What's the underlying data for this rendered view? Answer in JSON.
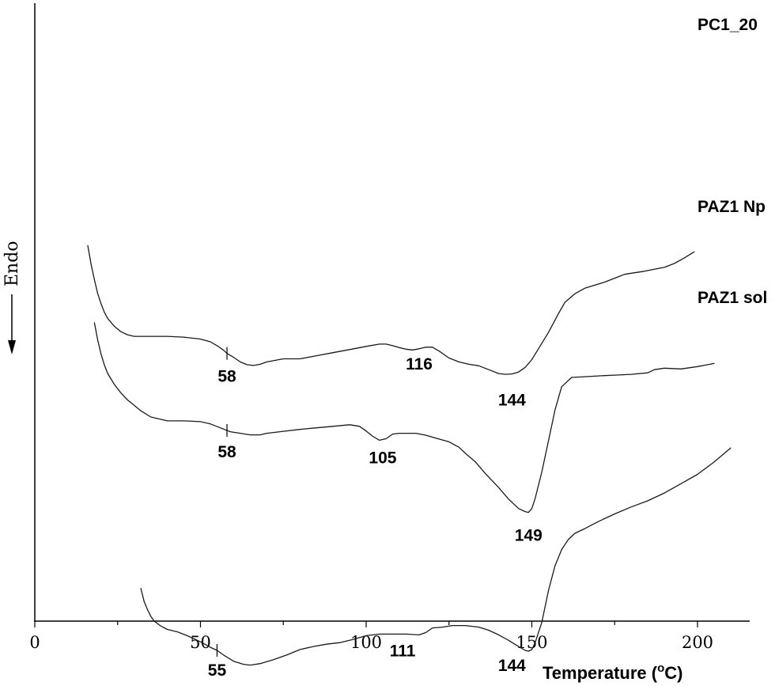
{
  "chart_data": {
    "type": "line",
    "title": "",
    "xlabel": "Temperature",
    "xlabel_unit_open": " (",
    "xlabel_unit_sup": "o",
    "xlabel_unit_close": "C)",
    "ylabel": "Endo",
    "xlim": [
      0,
      215
    ],
    "x_ticks": [
      0,
      50,
      100,
      150,
      200
    ],
    "x_tick_labels": [
      "0",
      "50",
      "100",
      "150",
      "200"
    ],
    "grid": false,
    "series": [
      {
        "name": "PC1_20",
        "x": [
          16,
          17,
          18,
          19,
          20,
          21,
          22,
          24,
          26,
          28,
          30,
          35,
          40,
          45,
          50,
          53,
          55,
          57,
          58,
          60,
          62,
          64,
          66,
          68,
          70,
          75,
          80,
          85,
          90,
          95,
          100,
          104,
          106,
          108,
          110,
          112,
          114,
          116,
          118,
          120,
          122,
          125,
          128,
          131,
          134,
          137,
          140,
          142,
          144,
          146,
          148,
          150,
          152,
          155,
          158,
          160,
          163,
          166,
          169,
          172,
          175,
          178,
          181,
          184,
          187,
          190,
          193,
          196,
          199
        ],
        "y": [
          7.44,
          6.96,
          6.56,
          6.2,
          5.94,
          5.72,
          5.56,
          5.36,
          5.22,
          5.14,
          5.1,
          5.1,
          5.1,
          5.08,
          5.03,
          4.96,
          4.86,
          4.74,
          4.66,
          4.56,
          4.44,
          4.37,
          4.35,
          4.38,
          4.44,
          4.52,
          4.52,
          4.6,
          4.68,
          4.76,
          4.84,
          4.9,
          4.9,
          4.86,
          4.81,
          4.77,
          4.75,
          4.78,
          4.82,
          4.82,
          4.72,
          4.54,
          4.44,
          4.38,
          4.34,
          4.24,
          4.14,
          4.12,
          4.13,
          4.18,
          4.3,
          4.5,
          4.78,
          5.2,
          5.68,
          5.98,
          6.2,
          6.34,
          6.42,
          6.5,
          6.6,
          6.7,
          6.74,
          6.78,
          6.83,
          6.88,
          6.98,
          7.12,
          7.28
        ]
      },
      {
        "name": "PAZ1 Np",
        "x": [
          18,
          19,
          20,
          21,
          22,
          24,
          26,
          28,
          30,
          32,
          35,
          40,
          45,
          50,
          53,
          56,
          59,
          62,
          65,
          68,
          70,
          75,
          80,
          85,
          90,
          95,
          98,
          100,
          102,
          104,
          106,
          108,
          110,
          115,
          118,
          120,
          125,
          128,
          130,
          133,
          136,
          140,
          143,
          146,
          148,
          149,
          150,
          151,
          153,
          155,
          157,
          159,
          162,
          166,
          170,
          175,
          180,
          185,
          187,
          190,
          195,
          200,
          205
        ],
        "y": [
          5.45,
          5.0,
          4.64,
          4.36,
          4.14,
          3.86,
          3.64,
          3.46,
          3.32,
          3.18,
          3.02,
          2.92,
          2.92,
          2.9,
          2.84,
          2.74,
          2.64,
          2.6,
          2.56,
          2.56,
          2.6,
          2.65,
          2.7,
          2.74,
          2.78,
          2.82,
          2.78,
          2.66,
          2.52,
          2.42,
          2.46,
          2.58,
          2.6,
          2.6,
          2.55,
          2.5,
          2.38,
          2.24,
          2.08,
          1.86,
          1.56,
          1.2,
          0.9,
          0.66,
          0.58,
          0.56,
          0.66,
          0.92,
          1.6,
          2.4,
          3.2,
          3.8,
          4.04,
          4.06,
          4.08,
          4.1,
          4.12,
          4.16,
          4.24,
          4.28,
          4.26,
          4.32,
          4.4
        ]
      },
      {
        "name": "PAZ1 sol",
        "x": [
          32,
          33,
          34,
          35,
          36,
          38,
          40,
          43,
          46,
          50,
          53,
          55,
          57,
          60,
          63,
          65,
          68,
          72,
          76,
          80,
          84,
          88,
          92,
          96,
          100,
          104,
          108,
          112,
          116,
          118,
          120,
          123,
          126,
          130,
          134,
          137,
          140,
          143,
          146,
          148,
          149,
          150,
          151,
          153,
          155,
          157,
          159,
          161,
          163,
          166,
          170,
          175,
          180,
          185,
          190,
          195,
          200,
          205,
          210
        ],
        "y": [
          -1.4,
          -1.74,
          -1.95,
          -2.12,
          -2.24,
          -2.37,
          -2.46,
          -2.52,
          -2.62,
          -2.78,
          -2.92,
          -3.0,
          -3.12,
          -3.28,
          -3.36,
          -3.38,
          -3.34,
          -3.24,
          -3.12,
          -2.98,
          -2.9,
          -2.84,
          -2.8,
          -2.72,
          -2.62,
          -2.58,
          -2.58,
          -2.58,
          -2.6,
          -2.54,
          -2.42,
          -2.4,
          -2.36,
          -2.36,
          -2.4,
          -2.48,
          -2.6,
          -2.74,
          -2.9,
          -3.0,
          -3.02,
          -2.98,
          -2.8,
          -2.28,
          -1.46,
          -0.82,
          -0.4,
          -0.14,
          0.02,
          0.14,
          0.32,
          0.52,
          0.7,
          0.86,
          1.06,
          1.3,
          1.54,
          1.86,
          2.22
        ]
      }
    ],
    "peak_annotations": [
      {
        "series": "PC1_20",
        "label": "58",
        "x": 58
      },
      {
        "series": "PC1_20",
        "label": "116",
        "x": 116
      },
      {
        "series": "PC1_20",
        "label": "144",
        "x": 144
      },
      {
        "series": "PAZ1 Np",
        "label": "58",
        "x": 58
      },
      {
        "series": "PAZ1 Np",
        "label": "105",
        "x": 105
      },
      {
        "series": "PAZ1 Np",
        "label": "149",
        "x": 149
      },
      {
        "series": "PAZ1 sol",
        "label": "55",
        "x": 55
      },
      {
        "series": "PAZ1 sol",
        "label": "111",
        "x": 111
      },
      {
        "series": "PAZ1 sol",
        "label": "144",
        "x": 144
      }
    ]
  }
}
